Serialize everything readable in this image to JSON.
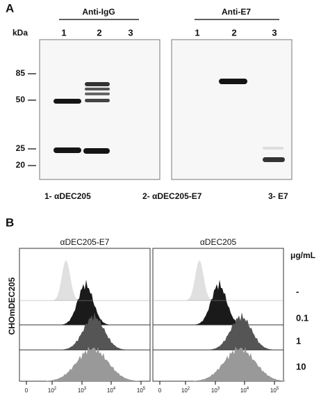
{
  "panel_a": {
    "letter": "A",
    "groups": [
      "Anti-IgG",
      "Anti-E7"
    ],
    "unit": "kDa",
    "lanes_left": [
      "1",
      "2",
      "3"
    ],
    "lanes_right": [
      "1",
      "2",
      "3"
    ],
    "markers": [
      "85",
      "50",
      "25",
      "20"
    ],
    "legend": [
      "1- αDEC205",
      "2- αDEC205-E7",
      "3- E7"
    ]
  },
  "panel_b": {
    "letter": "B",
    "titles": [
      "αDEC205-E7",
      "αDEC205"
    ],
    "unit": "μg/mL",
    "y_label": "CHOmDEC205",
    "rows": [
      "-",
      "0.1",
      "1",
      "10"
    ],
    "ticks": [
      {
        "base": "0"
      },
      {
        "base": "10",
        "exp": "2"
      },
      {
        "base": "10",
        "exp": "3"
      },
      {
        "base": "10",
        "exp": "4"
      },
      {
        "base": "10",
        "exp": "5"
      }
    ]
  }
}
